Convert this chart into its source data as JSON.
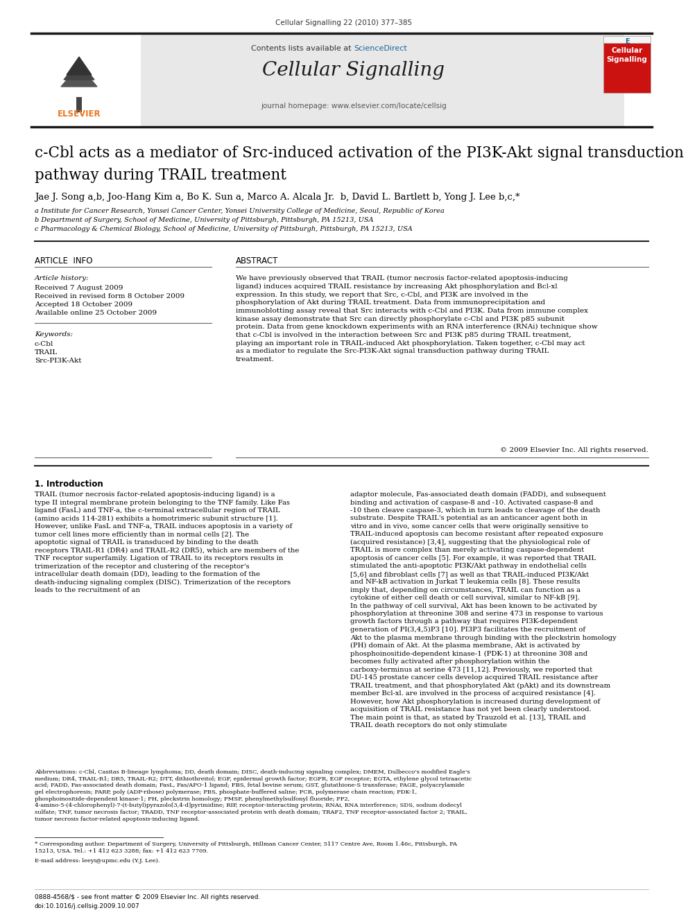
{
  "page_header": "Cellular Signalling 22 (2010) 377–385",
  "journal_name": "Cellular Signalling",
  "journal_homepage": "journal homepage: www.elsevier.com/locate/cellsig",
  "contents_text_pre": "Contents lists available at ",
  "contents_text_link": "ScienceDirect",
  "sciencedirect_color": "#1a6496",
  "title_line1": "c-Cbl acts as a mediator of Src-induced activation of the PI3K-Akt signal transduction",
  "title_line2": "pathway during TRAIL treatment",
  "author_line": "Jae J. Song a,b, Joo-Hang Kim a, Bo K. Sun a, Marco A. Alcala Jr.  b, David L. Bartlett b, Yong J. Lee b,c,*",
  "affiliation_a": "a Institute for Cancer Research, Yonsei Cancer Center, Yonsei University College of Medicine, Seoul, Republic of Korea",
  "affiliation_b": "b Department of Surgery, School of Medicine, University of Pittsburgh, Pittsburgh, PA 15213, USA",
  "affiliation_c": "c Pharmacology & Chemical Biology, School of Medicine, University of Pittsburgh, Pittsburgh, PA 15213, USA",
  "article_info_title": "ARTICLE  INFO",
  "abstract_title": "ABSTRACT",
  "article_history_label": "Article history:",
  "received": "Received 7 August 2009",
  "received_revised": "Received in revised form 8 October 2009",
  "accepted": "Accepted 18 October 2009",
  "available_online": "Available online 25 October 2009",
  "keywords_label": "Keywords:",
  "keyword1": "c-Cbl",
  "keyword2": "TRAIL",
  "keyword3": "Src-PI3K-Akt",
  "abstract_text": "We have previously observed that TRAIL (tumor necrosis factor-related apoptosis-inducing ligand) induces acquired TRAIL resistance by increasing Akt phosphorylation and Bcl-xl expression. In this study, we report that Src, c-Cbl, and PI3K are involved in the phosphorylation of Akt during TRAIL treatment. Data from immunoprecipitation and immunoblotting assay reveal that Src interacts with c-Cbl and PI3K. Data from immune complex kinase assay demonstrate that Src can directly phosphorylate c-Cbl and PI3K p85 subunit protein. Data from gene knockdown experiments with an RNA interference (RNAi) technique show that c-Cbl is involved in the interaction between Src and PI3K p85 during TRAIL treatment, playing an important role in TRAIL-induced Akt phosphorylation. Taken together, c-Cbl may act as a mediator to regulate the Src-PI3K-Akt signal transduction pathway during TRAIL treatment.",
  "copyright": "© 2009 Elsevier Inc. All rights reserved.",
  "intro_title": "1. Introduction",
  "intro_col1": "TRAIL (tumor necrosis factor-related apoptosis-inducing ligand) is a type II integral membrane protein belonging to the TNF family. Like Fas ligand (FasL) and TNF-a, the c-terminal extracellular region of TRAIL (amino acids 114-281) exhibits a homotrimeric subunit structure [1]. However, unlike FasL and TNF-a, TRAIL induces apoptosis in a variety of tumor cell lines more efficiently than in normal cells [2]. The apoptotic signal of TRAIL is transduced by binding to the death receptors TRAIL-R1 (DR4) and TRAIL-R2 (DR5), which are members of the TNF receptor superfamily. Ligation of TRAIL to its receptors results in trimerization of the receptor and clustering of the receptor's intracellular death domain (DD), leading to the formation of the death-inducing signaling complex (DISC). Trimerization of the receptors leads to the recruitment of an",
  "intro_col2": "adaptor molecule, Fas-associated death domain (FADD), and subsequent binding and activation of caspase-8 and -10. Activated caspase-8 and -10 then cleave caspase-3, which in turn leads to cleavage of the death substrate. Despite TRAIL's potential as an anticancer agent both in vitro and in vivo, some cancer cells that were originally sensitive to TRAIL-induced apoptosis can become resistant after repeated exposure (acquired resistance) [3,4], suggesting that the physiological role of TRAIL is more complex than merely activating caspase-dependent apoptosis of cancer cells [5]. For example, it was reported that TRAIL stimulated the anti-apoptotic PI3K/Akt pathway in endothelial cells [5,6] and fibroblast cells [7] as well as that TRAIL-induced PI3K/Akt and NF-kB activation in Jurkat T leukemia cells [8]. These results imply that, depending on circumstances, TRAIL can function as a cytokine of either cell death or cell survival, similar to NF-kB [9]. In the pathway of cell survival, Akt has been known to be activated by phosphorylation at threonine 308 and serine 473 in response to various growth factors through a pathway that requires PI3K-dependent generation of PI(3,4,5)P3 [10]. PI3P3 facilitates the recruitment of Akt to the plasma membrane through binding with the pleckstrin homology (PH) domain of Akt. At the plasma membrane, Akt is activated by phosphoinositide-dependent kinase-1 (PDK-1) at threonine 308 and becomes fully activated after phosphorylation within the carboxy-terminus at serine 473 [11,12]. Previously, we reported that DU-145 prostate cancer cells develop acquired TRAIL resistance after TRAIL treatment, and that phosphorylated Akt (pAkt) and its downstream member Bcl-xl. are involved in the process of acquired resistance [4]. However, how Akt phosphorylation is increased during development of acquisition of TRAIL resistance has not yet been clearly understood. The main point is that, as stated by Trauzold et al. [13], TRAIL and TRAIL death receptors do not only stimulate",
  "abbreviations_text": "Abbreviations: c-Cbl, Casitas B-lineage lymphoma; DD, death domain; DISC, death-inducing signaling complex; DMEM, Dulbecco's modified Eagle's medium; DR4, TRAIL-R1; DR5, TRAIL-R2; DTT, dithiothreitol; EGF, epidermal growth factor; EGFR, EGF receptor; EGTA, ethylene glycol tetraacetic acid; FADD, Fas-associated death domain; FasL, Fas/APO-1 ligand; FBS, fetal bovine serum; GST, glutathione-S transferase; PAGE, polyacrylamide gel electrophoresis; PARP, poly (ADP-ribose) polymerase; PBS, phosphate-buffered saline; PCR, polymerase chain reaction; PDK-1, phosphoinositide-dependent kinase-1; PH, pleckstrin homology; PMSF, phenylmethylsulfonyl fluoride; PP2, 4-amino-5-(4-chlorophenyl)-7-(t-butyl)pyrazolo[3,4-d]pyrimidine; RIP, receptor-interacting protein; RNAi, RNA interference; SDS, sodium dodecyl sulfate; TNF, tumor necrosis factor; TRADD, TNF receptor-associated protein with death domain; TRAF2, TNF receptor-associated factor 2; TRAIL, tumor necrosis factor-related apoptosis-inducing ligand.",
  "footnote_corresponding": "* Corresponding author. Department of Surgery, University of Pittsburgh, Hillman Cancer Center, 5117 Centre Ave, Room 1.46c, Pittsburgh, PA 15213, USA. Tel.: +1 412 623 3288; fax: +1 412 623 7709.",
  "footnote_email": "E-mail address: leeyi@upmc.edu (Y.J. Lee).",
  "footer_issn": "0888-4568/$ - see front matter © 2009 Elsevier Inc. All rights reserved.",
  "footer_doi": "doi:10.1016/j.cellsig.2009.10.007",
  "bg_color": "#ffffff",
  "text_color": "#000000",
  "header_bar_color": "#1a1a1a",
  "light_gray_bg": "#e8e8e8",
  "divider_color": "#555555",
  "elsevier_orange": "#e87722",
  "journal_cover_red": "#cc1111"
}
